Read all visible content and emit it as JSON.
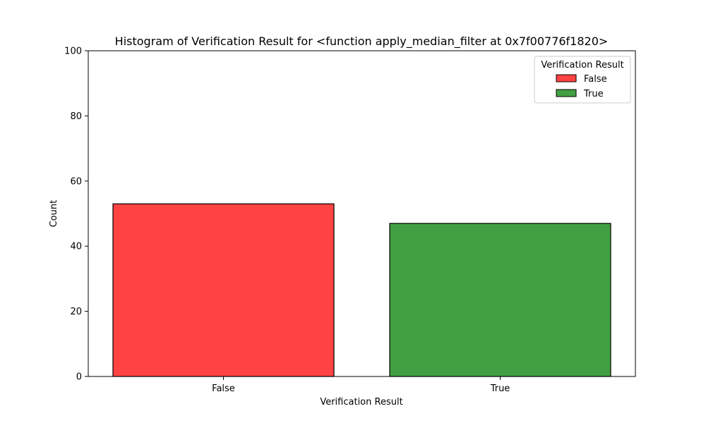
{
  "chart_data": {
    "type": "bar",
    "title": "Histogram of Verification Result for <function apply_median_filter at 0x7f00776f1820>",
    "xlabel": "Verification Result",
    "ylabel": "Count",
    "categories": [
      "False",
      "True"
    ],
    "values": [
      53,
      47
    ],
    "colors": [
      "#ff4242",
      "#42a042"
    ],
    "ylim": [
      0,
      100
    ],
    "yticks": [
      "0",
      "20",
      "40",
      "60",
      "80",
      "100"
    ],
    "grid": false,
    "legend": {
      "title": "Verification Result",
      "placement": "top-right",
      "entries": [
        "False",
        "True"
      ]
    }
  }
}
